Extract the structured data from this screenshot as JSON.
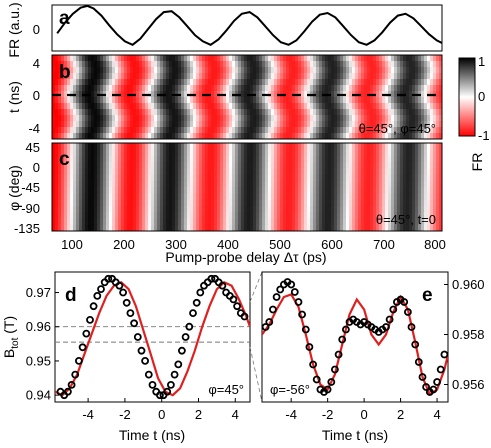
{
  "chart_data": [
    {
      "panel": "a",
      "type": "line",
      "ylabel": "FR (a.u.)",
      "yticks": [
        "0"
      ],
      "xlim": [
        50,
        800
      ],
      "ylim": [
        -1.3,
        1.3
      ],
      "series": [
        {
          "x": [
            60,
            75,
            90,
            105,
            118,
            130,
            145,
            160,
            175,
            190,
            205,
            220,
            235,
            250,
            265,
            280,
            295,
            310,
            325,
            340,
            355,
            370,
            385,
            400,
            415,
            430,
            445,
            460,
            475,
            490,
            505,
            520,
            535,
            550,
            565,
            580,
            595,
            610,
            625,
            640,
            655,
            670,
            685,
            700,
            715,
            730,
            745,
            760,
            775,
            790,
            800
          ],
          "y": [
            -0.3,
            0.3,
            0.8,
            1.15,
            1.25,
            1.1,
            0.7,
            0.15,
            -0.35,
            -0.75,
            -0.95,
            -0.6,
            -0.05,
            0.5,
            0.9,
            0.95,
            0.6,
            0.1,
            -0.4,
            -0.75,
            -0.95,
            -0.65,
            -0.15,
            0.4,
            0.8,
            0.9,
            0.6,
            0.1,
            -0.4,
            -0.8,
            -0.95,
            -0.7,
            -0.2,
            0.35,
            0.75,
            0.85,
            0.6,
            0.1,
            -0.4,
            -0.8,
            -0.95,
            -0.7,
            -0.25,
            0.3,
            0.7,
            0.8,
            0.55,
            0.1,
            -0.35,
            -0.7,
            -0.85
          ]
        }
      ]
    },
    {
      "panel": "b",
      "type": "heatmap",
      "ylabel": "t (ns)",
      "yticks": [
        "4",
        "0",
        "-4"
      ],
      "ylim": [
        -5.5,
        5
      ],
      "annotation": "θ=45°, φ=45°",
      "dashed_line_y": 0
    },
    {
      "panel": "c",
      "type": "heatmap",
      "ylabel": "φ (deg)",
      "yticks": [
        "45",
        "0",
        "-45",
        "-90",
        "-135"
      ],
      "ylim": [
        -135,
        45
      ],
      "annotation": "θ=45°, t=0"
    },
    {
      "panel": "colorbar",
      "type": "heatmap",
      "label": "FR",
      "ticks": [
        "1",
        "0",
        "-1"
      ],
      "colors": {
        "pos": "#000000",
        "zero": "#ffffff",
        "neg": "#ff0000"
      }
    },
    {
      "panel": "shared-x",
      "xlabel": "Pump-probe delay Δτ (ps)",
      "xticks": [
        "100",
        "200",
        "300",
        "400",
        "500",
        "600",
        "700",
        "800"
      ]
    },
    {
      "panel": "d",
      "type": "scatter",
      "ylabel": "Btot (T)",
      "ylabel_main": "B",
      "ylabel_sub": "tot",
      "ylabel_unit": " (T)",
      "xlabel": "Time t (ns)",
      "xticks": [
        "-4",
        "-2",
        "0",
        "2",
        "4"
      ],
      "yticks": [
        "0.97",
        "0.96",
        "0.95",
        "0.94"
      ],
      "xlim": [
        -5.8,
        4.8
      ],
      "ylim": [
        0.938,
        0.976
      ],
      "annotation": "φ=45°",
      "dashed_levels": [
        0.96,
        0.9555
      ],
      "points": {
        "x": [
          -5.5,
          -5.3,
          -5.1,
          -4.9,
          -4.7,
          -4.5,
          -4.3,
          -4.1,
          -3.9,
          -3.7,
          -3.5,
          -3.3,
          -3.1,
          -2.9,
          -2.7,
          -2.5,
          -2.3,
          -2.1,
          -1.9,
          -1.7,
          -1.5,
          -1.3,
          -1.1,
          -0.9,
          -0.7,
          -0.5,
          -0.3,
          -0.1,
          0.1,
          0.3,
          0.5,
          0.7,
          0.9,
          1.1,
          1.3,
          1.5,
          1.7,
          1.9,
          2.1,
          2.3,
          2.5,
          2.7,
          2.9,
          3.1,
          3.3,
          3.5,
          3.7,
          3.9,
          4.1,
          4.3,
          4.5
        ],
        "y": [
          0.941,
          0.94,
          0.941,
          0.943,
          0.946,
          0.95,
          0.954,
          0.958,
          0.962,
          0.966,
          0.969,
          0.971,
          0.973,
          0.974,
          0.974,
          0.973,
          0.972,
          0.97,
          0.967,
          0.964,
          0.961,
          0.957,
          0.953,
          0.95,
          0.946,
          0.943,
          0.941,
          0.94,
          0.94,
          0.941,
          0.943,
          0.946,
          0.949,
          0.953,
          0.957,
          0.96,
          0.964,
          0.967,
          0.97,
          0.972,
          0.973,
          0.974,
          0.974,
          0.973,
          0.972,
          0.97,
          0.969,
          0.968,
          0.966,
          0.964,
          0.963
        ]
      },
      "fit": {
        "x": [
          -5.8,
          -5.4,
          -5.0,
          -4.6,
          -4.2,
          -3.8,
          -3.4,
          -3.0,
          -2.6,
          -2.2,
          -1.8,
          -1.4,
          -1.0,
          -0.6,
          -0.2,
          0.2,
          0.6,
          1.0,
          1.4,
          1.8,
          2.2,
          2.6,
          3.0,
          3.4,
          3.8,
          4.2,
          4.6,
          4.8
        ],
        "y": [
          0.941,
          0.94,
          0.942,
          0.946,
          0.952,
          0.958,
          0.964,
          0.969,
          0.972,
          0.973,
          0.971,
          0.966,
          0.959,
          0.952,
          0.945,
          0.941,
          0.94,
          0.942,
          0.947,
          0.953,
          0.96,
          0.966,
          0.971,
          0.973,
          0.972,
          0.968,
          0.963,
          0.96
        ]
      }
    },
    {
      "panel": "e",
      "type": "scatter",
      "xlabel": "Time t (ns)",
      "xticks": [
        "-4",
        "-2",
        "0",
        "2",
        "4"
      ],
      "yticks": [
        "0.960",
        "0.958",
        "0.956"
      ],
      "xlim": [
        -5.6,
        4.6
      ],
      "ylim": [
        0.9553,
        0.9605
      ],
      "annotation": "φ=-56°",
      "points": {
        "x": [
          -5.4,
          -5.2,
          -5.0,
          -4.8,
          -4.6,
          -4.4,
          -4.2,
          -4.0,
          -3.8,
          -3.6,
          -3.4,
          -3.2,
          -3.0,
          -2.8,
          -2.6,
          -2.4,
          -2.2,
          -2.0,
          -1.8,
          -1.6,
          -1.4,
          -1.2,
          -1.0,
          -0.8,
          -0.6,
          -0.4,
          -0.2,
          0.0,
          0.2,
          0.4,
          0.6,
          0.8,
          1.0,
          1.2,
          1.4,
          1.6,
          1.8,
          2.0,
          2.2,
          2.4,
          2.6,
          2.8,
          3.0,
          3.2,
          3.4,
          3.6,
          3.8,
          4.0,
          4.2,
          4.4
        ],
        "y": [
          0.9583,
          0.9585,
          0.959,
          0.9595,
          0.9598,
          0.96,
          0.9601,
          0.96,
          0.9597,
          0.9593,
          0.9588,
          0.9582,
          0.9575,
          0.9568,
          0.9562,
          0.9558,
          0.9557,
          0.9558,
          0.9561,
          0.9566,
          0.9572,
          0.9578,
          0.9582,
          0.9585,
          0.9586,
          0.9585,
          0.9584,
          0.9585,
          0.9584,
          0.9583,
          0.9582,
          0.9581,
          0.9582,
          0.9583,
          0.9586,
          0.959,
          0.9593,
          0.9594,
          0.9593,
          0.9589,
          0.9583,
          0.9576,
          0.9569,
          0.9563,
          0.9559,
          0.9557,
          0.9558,
          0.9561,
          0.9566,
          0.9572
        ]
      },
      "fit": {
        "x": [
          -5.6,
          -5.2,
          -4.8,
          -4.4,
          -4.0,
          -3.6,
          -3.2,
          -2.8,
          -2.4,
          -2.0,
          -1.6,
          -1.2,
          -0.8,
          -0.4,
          0.0,
          0.4,
          0.8,
          1.2,
          1.6,
          2.0,
          2.4,
          2.8,
          3.2,
          3.6,
          4.0,
          4.4,
          4.6
        ],
        "y": [
          0.958,
          0.9584,
          0.959,
          0.9595,
          0.9596,
          0.9591,
          0.958,
          0.9568,
          0.956,
          0.9558,
          0.9564,
          0.9576,
          0.9588,
          0.9594,
          0.959,
          0.958,
          0.9576,
          0.958,
          0.9589,
          0.9595,
          0.959,
          0.9577,
          0.9563,
          0.9556,
          0.9558,
          0.9566,
          0.9572
        ]
      }
    }
  ]
}
